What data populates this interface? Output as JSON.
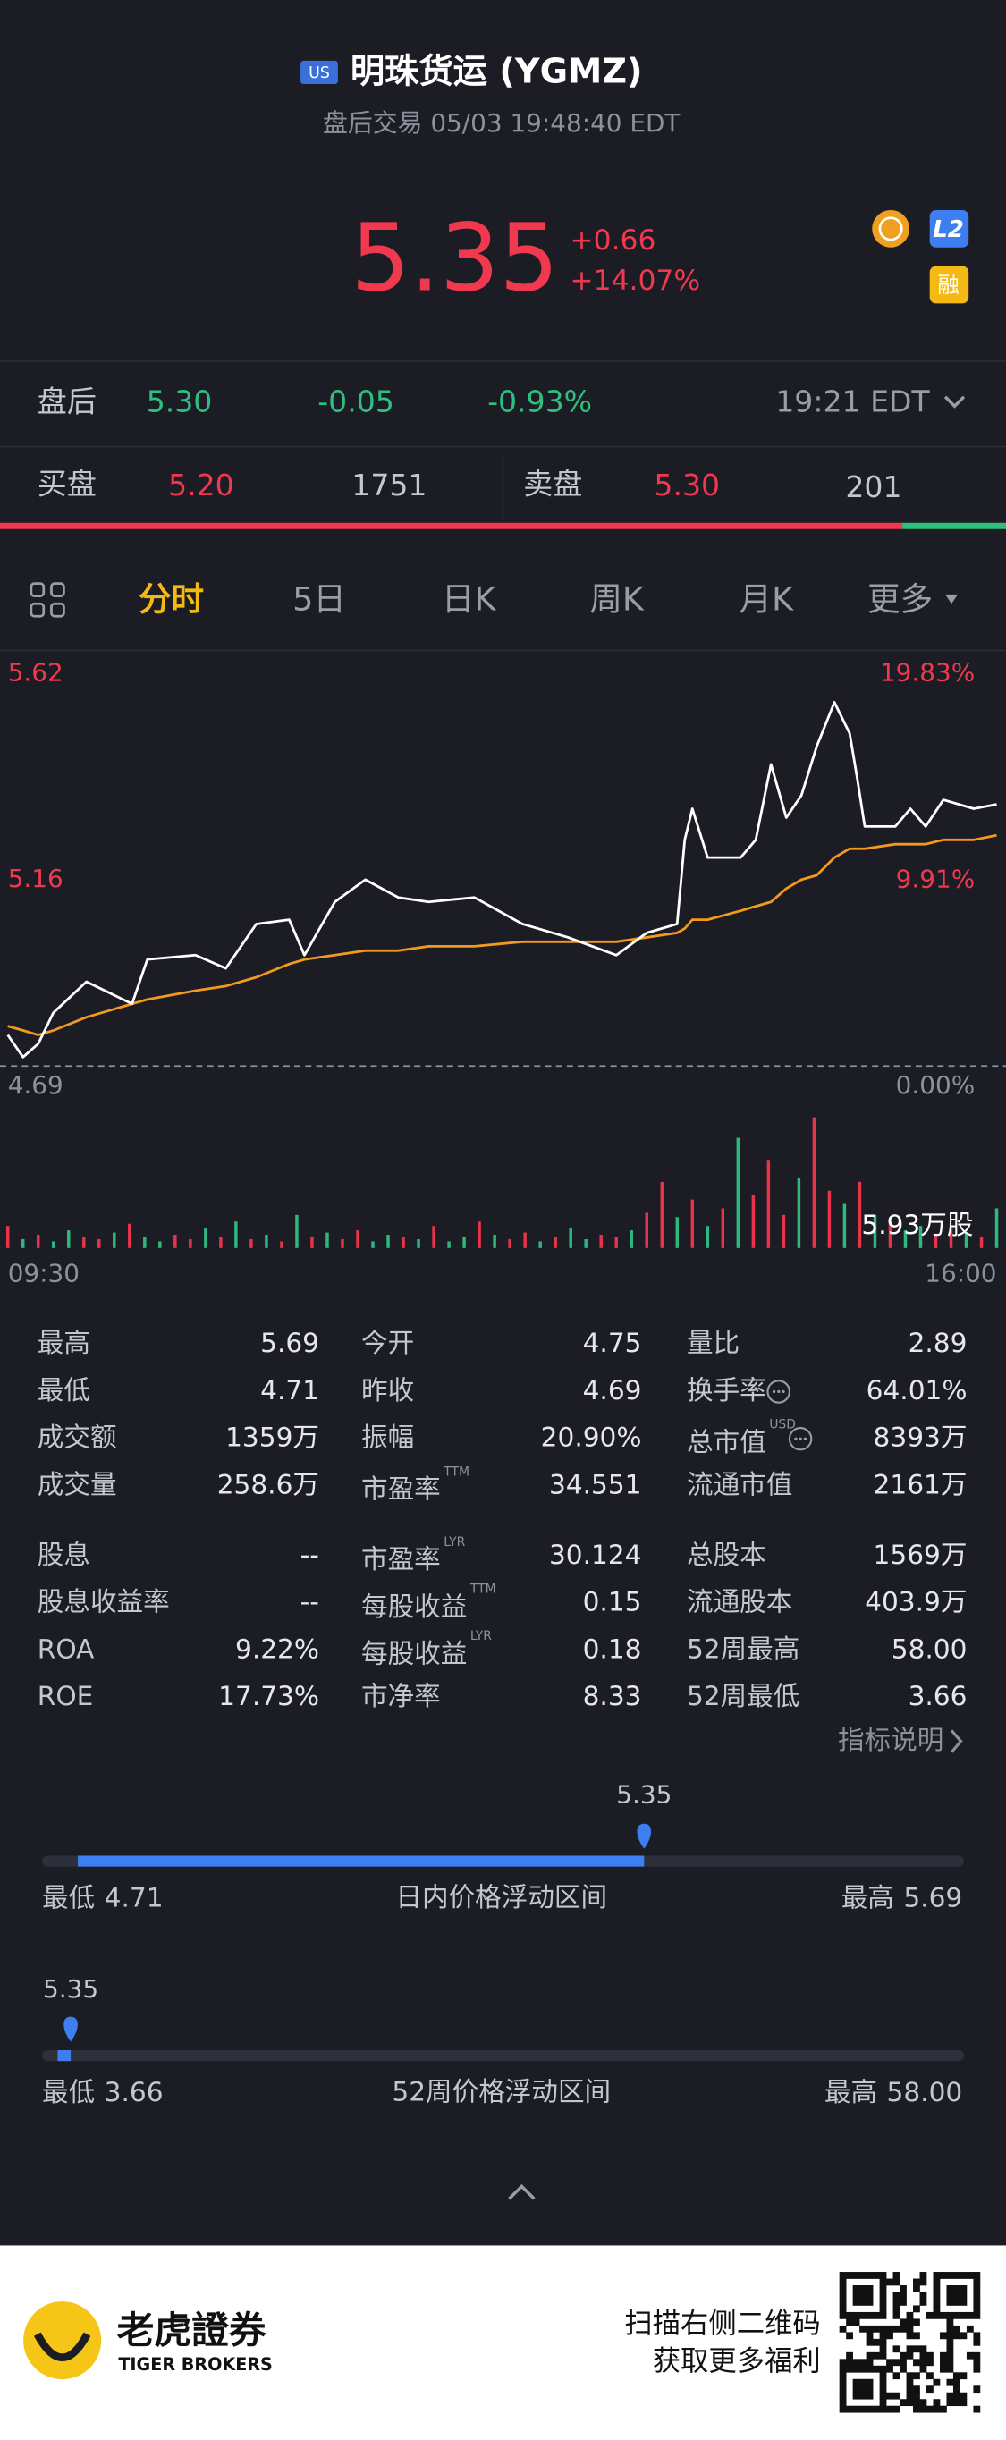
{
  "header": {
    "market_badge": "US",
    "title": "明珠货运 (YGMZ)",
    "subtitle": "盘后交易 05/03 19:48:40 EDT"
  },
  "quote": {
    "price": "5.35",
    "change": "+0.66",
    "change_pct": "+14.07%",
    "badges": [
      "L2",
      "融"
    ]
  },
  "after_hours": {
    "label": "盘后",
    "price": "5.30",
    "change": "-0.05",
    "change_pct": "-0.93%",
    "time": "19:21 EDT"
  },
  "order_book": {
    "bid_label": "买盘",
    "bid_price": "5.20",
    "bid_size": 1751,
    "ask_label": "卖盘",
    "ask_price": "5.30",
    "ask_size": 201
  },
  "tabs": {
    "items": [
      "分时",
      "5日",
      "日K",
      "周K",
      "月K",
      "更多"
    ],
    "active": 0
  },
  "chart_data": [
    {
      "type": "line",
      "reference_line": true,
      "grid": false,
      "x": [
        0,
        6,
        12,
        18,
        31,
        49,
        55,
        74,
        86,
        98,
        111,
        117,
        129,
        141,
        154,
        166,
        184,
        203,
        221,
        240,
        252,
        264,
        267,
        270,
        276,
        289,
        295,
        301,
        307,
        313,
        319,
        326,
        332,
        335,
        338,
        350,
        356,
        362,
        369,
        381,
        390
      ],
      "xlim": [
        0,
        390
      ],
      "ylim": [
        4.69,
        5.62
      ],
      "yticks": [
        4.69,
        {
          "value": 5.155,
          "label": "5.16"
        },
        5.62
      ],
      "y2lim": [
        0,
        19.83
      ],
      "y2ticks": [
        {
          "value": 0,
          "label": "0.00%"
        },
        {
          "value": 9.91,
          "label": "9.91%"
        },
        {
          "value": 19.83,
          "label": "19.83%"
        }
      ],
      "series": [
        {
          "color": "#ffffff",
          "values": [
            4.76,
            4.71,
            4.74,
            4.81,
            4.88,
            4.83,
            4.93,
            4.94,
            4.91,
            5.01,
            5.02,
            4.94,
            5.06,
            5.11,
            5.07,
            5.06,
            5.07,
            5.01,
            4.98,
            4.94,
            4.99,
            5.01,
            5.2,
            5.27,
            5.16,
            5.16,
            5.2,
            5.37,
            5.25,
            5.3,
            5.41,
            5.51,
            5.44,
            5.34,
            5.23,
            5.23,
            5.27,
            5.23,
            5.29,
            5.27,
            5.28
          ]
        },
        {
          "color": "#f39a1e",
          "values": [
            4.78,
            4.77,
            4.76,
            4.77,
            4.8,
            4.83,
            4.84,
            4.86,
            4.87,
            4.89,
            4.92,
            4.93,
            4.94,
            4.95,
            4.95,
            4.96,
            4.96,
            4.97,
            4.97,
            4.97,
            4.98,
            4.99,
            5.0,
            5.02,
            5.02,
            5.04,
            5.05,
            5.06,
            5.09,
            5.11,
            5.12,
            5.16,
            5.18,
            5.18,
            5.18,
            5.19,
            5.19,
            5.19,
            5.2,
            5.2,
            5.21
          ]
        }
      ]
    },
    {
      "type": "bar",
      "x": [
        0,
        6,
        12,
        18,
        24,
        30,
        36,
        42,
        48,
        54,
        60,
        66,
        72,
        78,
        84,
        90,
        96,
        102,
        108,
        114,
        120,
        126,
        132,
        138,
        144,
        150,
        156,
        162,
        168,
        174,
        180,
        186,
        192,
        198,
        204,
        210,
        216,
        222,
        228,
        234,
        240,
        246,
        252,
        258,
        264,
        270,
        276,
        282,
        288,
        294,
        300,
        306,
        312,
        318,
        324,
        330,
        336,
        342,
        348,
        354,
        360,
        366,
        372,
        378,
        384,
        390
      ],
      "values": [
        1.0,
        0.4,
        0.6,
        0.3,
        0.8,
        0.5,
        0.4,
        0.7,
        1.1,
        0.5,
        0.3,
        0.6,
        0.4,
        0.9,
        0.5,
        1.2,
        0.4,
        0.6,
        0.3,
        1.5,
        0.5,
        0.7,
        0.4,
        0.8,
        0.3,
        0.6,
        0.5,
        0.4,
        1.0,
        0.3,
        0.5,
        1.2,
        0.6,
        0.4,
        0.7,
        0.3,
        0.5,
        0.9,
        0.4,
        0.6,
        0.5,
        0.8,
        1.6,
        3.0,
        1.4,
        2.2,
        1.0,
        1.8,
        5.0,
        2.4,
        4.0,
        1.5,
        3.2,
        5.93,
        2.6,
        2.0,
        3.0,
        1.5,
        1.2,
        0.8,
        1.0,
        0.6,
        0.9,
        0.7,
        0.5,
        1.8
      ],
      "colors": [
        "#e8334a",
        "#2db87d",
        "#e8334a",
        "#2db87d",
        "#2db87d",
        "#e8334a",
        "#e8334a",
        "#2db87d",
        "#e8334a",
        "#2db87d",
        "#2db87d",
        "#e8334a",
        "#e8334a",
        "#2db87d",
        "#e8334a",
        "#2db87d",
        "#e8334a",
        "#2db87d",
        "#e8334a",
        "#2db87d",
        "#e8334a",
        "#2db87d",
        "#e8334a",
        "#e8334a",
        "#2db87d",
        "#2db87d",
        "#e8334a",
        "#2db87d",
        "#e8334a",
        "#2db87d",
        "#2db87d",
        "#e8334a",
        "#2db87d",
        "#e8334a",
        "#e8334a",
        "#2db87d",
        "#e8334a",
        "#2db87d",
        "#2db87d",
        "#e8334a",
        "#e8334a",
        "#2db87d",
        "#e8334a",
        "#e8334a",
        "#2db87d",
        "#e8334a",
        "#2db87d",
        "#e8334a",
        "#2db87d",
        "#e8334a",
        "#e8334a",
        "#e8334a",
        "#2db87d",
        "#e8334a",
        "#e8334a",
        "#2db87d",
        "#e8334a",
        "#2db87d",
        "#e8334a",
        "#2db87d",
        "#2db87d",
        "#e8334a",
        "#e8334a",
        "#2db87d",
        "#e8334a",
        "#2db87d"
      ],
      "xlim": [
        0,
        390
      ],
      "ylim": [
        0,
        5.93
      ],
      "yticks": [
        {
          "value": 5.93,
          "label": "5.93万股"
        }
      ],
      "xticks": [
        {
          "value": 0,
          "label": "09:30"
        },
        {
          "value": 390,
          "label": "16:00"
        }
      ]
    }
  ],
  "stats": [
    [
      [
        {
          "label": "最高",
          "value": "5.69"
        },
        {
          "label": "最低",
          "value": "4.71"
        },
        {
          "label": "成交额",
          "value": "1359万"
        },
        {
          "label": "成交量",
          "value": "258.6万"
        }
      ],
      [
        {
          "label": "今开",
          "value": "4.75"
        },
        {
          "label": "昨收",
          "value": "4.69"
        },
        {
          "label": "振幅",
          "value": "20.90%"
        },
        {
          "label": "市盈率",
          "sup": "TTM",
          "value": "34.551"
        }
      ],
      [
        {
          "label": "量比",
          "value": "2.89"
        },
        {
          "label": "换手率",
          "info": true,
          "value": "64.01%"
        },
        {
          "label": "总市值",
          "sup": "USD",
          "info": true,
          "value": "8393万"
        },
        {
          "label": "流通市值",
          "value": "2161万"
        }
      ]
    ],
    [
      [
        {
          "label": "股息",
          "value": "--"
        },
        {
          "label": "股息收益率",
          "value": "--"
        },
        {
          "label": "ROA",
          "value": "9.22%"
        },
        {
          "label": "ROE",
          "value": "17.73%"
        }
      ],
      [
        {
          "label": "市盈率",
          "sup": "LYR",
          "value": "30.124"
        },
        {
          "label": "每股收益",
          "sup": "TTM",
          "value": "0.15"
        },
        {
          "label": "每股收益",
          "sup": "LYR",
          "value": "0.18"
        },
        {
          "label": "市净率",
          "value": "8.33"
        }
      ],
      [
        {
          "label": "总股本",
          "value": "1569万"
        },
        {
          "label": "流通股本",
          "value": "403.9万"
        },
        {
          "label": "52周最高",
          "value": "58.00"
        },
        {
          "label": "52周最低",
          "value": "3.66"
        }
      ]
    ]
  ],
  "stats_link": "指标说明",
  "day_range": {
    "title": "日内价格浮动区间",
    "current": {
      "value": 5.35,
      "label": "5.35"
    },
    "low_label": "最低",
    "low": {
      "value": 4.71,
      "label": "4.71"
    },
    "high_label": "最高",
    "high": {
      "value": 5.69,
      "label": "5.69"
    }
  },
  "week52_range": {
    "title": "52周价格浮动区间",
    "current": {
      "value": 5.35,
      "label": "5.35"
    },
    "low_label": "最低",
    "low": {
      "value": 3.66,
      "label": "3.66"
    },
    "high_label": "最高",
    "high": {
      "value": 58,
      "label": "58.00"
    }
  },
  "footer": {
    "brand": "老虎證券",
    "brand_en": "TIGER BROKERS",
    "promo_line1": "扫描右侧二维码",
    "promo_line2": "获取更多福利"
  }
}
